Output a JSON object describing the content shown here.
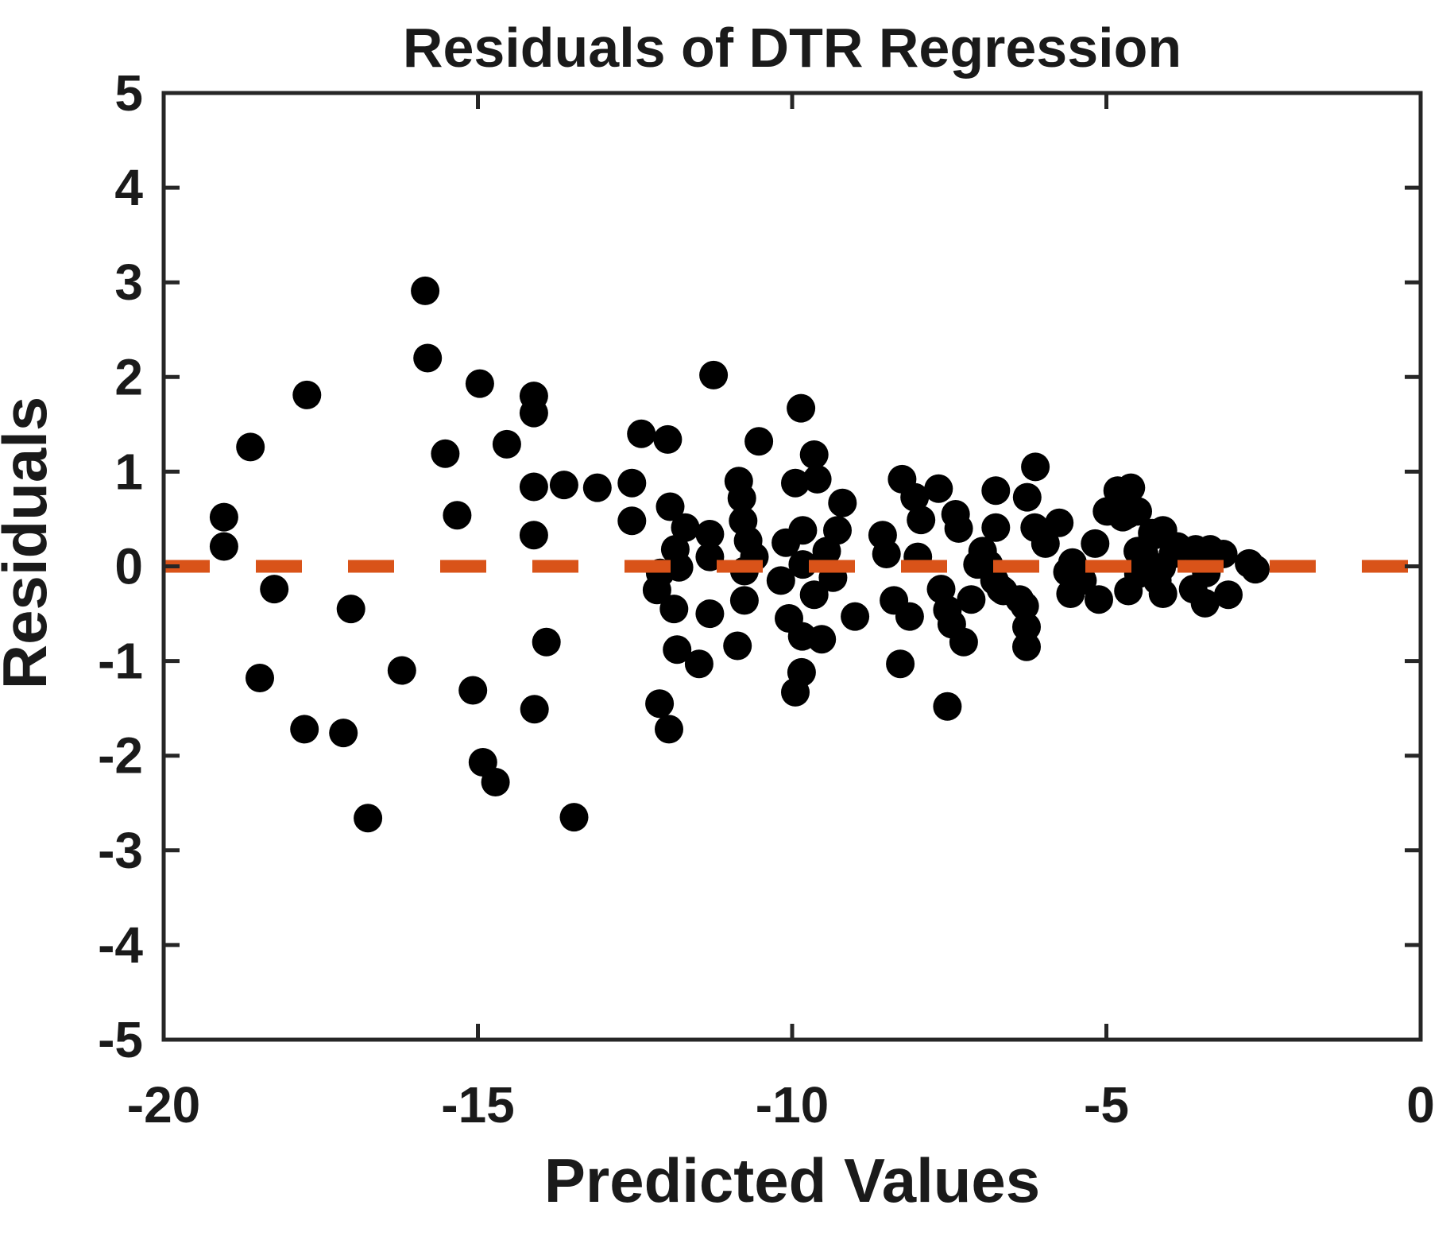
{
  "figure": {
    "title": "Residuals of DTR Regression",
    "xlabel": "Predicted Values",
    "ylabel": "Residuals"
  },
  "colors": {
    "marker": "#000000",
    "zero_line": "#D95319",
    "axis": "#262626",
    "text": "#1a1a1a",
    "background": "#ffffff"
  },
  "chart_data": {
    "type": "scatter",
    "title": "Residuals of DTR Regression",
    "xlabel": "Predicted Values",
    "ylabel": "Residuals",
    "xlim": [
      -20,
      0
    ],
    "ylim": [
      -5,
      5
    ],
    "x_ticks": [
      -20,
      -15,
      -10,
      -5,
      0
    ],
    "y_ticks": [
      -5,
      -4,
      -3,
      -2,
      -1,
      0,
      1,
      2,
      3,
      4,
      5
    ],
    "grid": false,
    "legend": "none",
    "box": true,
    "tick_direction": "in",
    "zero_line": {
      "y": 0,
      "style": "dashed",
      "color": "#D95319"
    },
    "marker": {
      "shape": "circle",
      "radius_px": 18,
      "color": "#000000"
    },
    "points": [
      [
        -15.84,
        2.91
      ],
      [
        -15.8,
        2.2
      ],
      [
        -14.97,
        1.93
      ],
      [
        -17.72,
        1.81
      ],
      [
        -18.62,
        1.26
      ],
      [
        -15.52,
        1.19
      ],
      [
        -19.04,
        0.52
      ],
      [
        -19.04,
        0.21
      ],
      [
        -15.33,
        0.54
      ],
      [
        -18.24,
        -0.24
      ],
      [
        -17.02,
        -0.45
      ],
      [
        -18.47,
        -1.18
      ],
      [
        -16.21,
        -1.1
      ],
      [
        -15.08,
        -1.31
      ],
      [
        -17.76,
        -1.72
      ],
      [
        -17.14,
        -1.76
      ],
      [
        -14.92,
        -2.07
      ],
      [
        -14.72,
        -2.28
      ],
      [
        -16.75,
        -2.66
      ],
      [
        -14.11,
        1.8
      ],
      [
        -14.11,
        1.62
      ],
      [
        -14.54,
        1.29
      ],
      [
        -14.11,
        0.84
      ],
      [
        -14.11,
        0.33
      ],
      [
        -13.91,
        -0.8
      ],
      [
        -14.1,
        -1.51
      ],
      [
        -13.47,
        -2.65
      ],
      [
        -13.63,
        0.86
      ],
      [
        -13.1,
        0.83
      ],
      [
        -12.55,
        0.88
      ],
      [
        -12.4,
        1.4
      ],
      [
        -11.98,
        1.34
      ],
      [
        -11.25,
        2.02
      ],
      [
        -10.53,
        1.32
      ],
      [
        -9.86,
        1.67
      ],
      [
        -12.55,
        0.48
      ],
      [
        -11.94,
        0.63
      ],
      [
        -11.7,
        0.41
      ],
      [
        -11.86,
        0.18
      ],
      [
        -11.8,
        -0.01
      ],
      [
        -11.31,
        0.34
      ],
      [
        -11.31,
        0.1
      ],
      [
        -10.85,
        0.9
      ],
      [
        -10.8,
        0.72
      ],
      [
        -10.78,
        0.48
      ],
      [
        -10.7,
        0.27
      ],
      [
        -10.6,
        0.1
      ],
      [
        -10.1,
        0.25
      ],
      [
        -9.65,
        1.18
      ],
      [
        -9.95,
        0.88
      ],
      [
        -9.6,
        0.92
      ],
      [
        -9.2,
        0.67
      ],
      [
        -12.1,
        -0.07
      ],
      [
        -12.15,
        -0.25
      ],
      [
        -11.88,
        -0.45
      ],
      [
        -11.31,
        -0.5
      ],
      [
        -10.76,
        -0.36
      ],
      [
        -10.76,
        -0.05
      ],
      [
        -10.18,
        -0.15
      ],
      [
        -10.05,
        -0.55
      ],
      [
        -9.84,
        -0.74
      ],
      [
        -11.83,
        -0.88
      ],
      [
        -11.48,
        -1.03
      ],
      [
        -10.87,
        -0.84
      ],
      [
        -9.85,
        -1.12
      ],
      [
        -9.95,
        -1.33
      ],
      [
        -12.11,
        -1.45
      ],
      [
        -11.96,
        -1.72
      ],
      [
        -9.83,
        0.02
      ],
      [
        -9.45,
        0.16
      ],
      [
        -9.28,
        0.38
      ],
      [
        -9.83,
        0.38
      ],
      [
        -9.35,
        -0.12
      ],
      [
        -9.65,
        -0.3
      ],
      [
        -9.0,
        -0.53
      ],
      [
        -9.53,
        -0.77
      ],
      [
        -8.56,
        0.33
      ],
      [
        -8.5,
        0.13
      ],
      [
        -8.25,
        0.92
      ],
      [
        -8.05,
        0.73
      ],
      [
        -7.95,
        0.49
      ],
      [
        -7.4,
        0.55
      ],
      [
        -7.35,
        0.4
      ],
      [
        -8.0,
        0.1
      ],
      [
        -8.38,
        -0.36
      ],
      [
        -8.13,
        -0.53
      ],
      [
        -8.28,
        -1.03
      ],
      [
        -7.53,
        -0.46
      ],
      [
        -7.46,
        -0.61
      ],
      [
        -7.27,
        -0.8
      ],
      [
        -7.63,
        -0.24
      ],
      [
        -7.15,
        -0.35
      ],
      [
        -7.53,
        -1.48
      ],
      [
        -7.67,
        0.82
      ],
      [
        -7.05,
        0.02
      ],
      [
        -6.87,
        0.02
      ],
      [
        -6.78,
        -0.15
      ],
      [
        -6.64,
        -0.26
      ],
      [
        -6.76,
        0.8
      ],
      [
        -6.76,
        0.41
      ],
      [
        -6.97,
        0.16
      ],
      [
        -6.68,
        -0.24
      ],
      [
        -6.38,
        -0.35
      ],
      [
        -6.27,
        -0.64
      ],
      [
        -6.3,
        -0.42
      ],
      [
        -6.27,
        -0.85
      ],
      [
        -6.13,
        1.05
      ],
      [
        -6.26,
        0.73
      ],
      [
        -6.14,
        0.41
      ],
      [
        -5.75,
        0.46
      ],
      [
        -5.97,
        0.24
      ],
      [
        -5.54,
        0.04
      ],
      [
        -5.62,
        -0.06
      ],
      [
        -5.57,
        -0.29
      ],
      [
        -5.38,
        -0.15
      ],
      [
        -5.12,
        -0.35
      ],
      [
        -4.99,
        0.58
      ],
      [
        -5.18,
        0.24
      ],
      [
        -4.82,
        0.8
      ],
      [
        -4.61,
        0.83
      ],
      [
        -4.5,
        0.58
      ],
      [
        -4.74,
        0.52
      ],
      [
        -4.66,
        0.55
      ],
      [
        -4.27,
        0.35
      ],
      [
        -4.1,
        0.38
      ],
      [
        -4.4,
        0.13
      ],
      [
        -4.12,
        -0.01
      ],
      [
        -4.49,
        -0.08
      ],
      [
        -4.24,
        0.33
      ],
      [
        -4.5,
        0.16
      ],
      [
        -3.94,
        0.13
      ],
      [
        -3.87,
        0.21
      ],
      [
        -3.58,
        0.18
      ],
      [
        -3.35,
        0.18
      ],
      [
        -3.14,
        0.13
      ],
      [
        -2.73,
        0.03
      ],
      [
        -3.62,
        -0.24
      ],
      [
        -3.43,
        -0.39
      ],
      [
        -3.06,
        -0.3
      ],
      [
        -4.1,
        -0.29
      ],
      [
        -4.65,
        -0.26
      ],
      [
        -4.19,
        -0.15
      ],
      [
        -3.41,
        -0.07
      ],
      [
        -2.63,
        -0.03
      ]
    ]
  }
}
